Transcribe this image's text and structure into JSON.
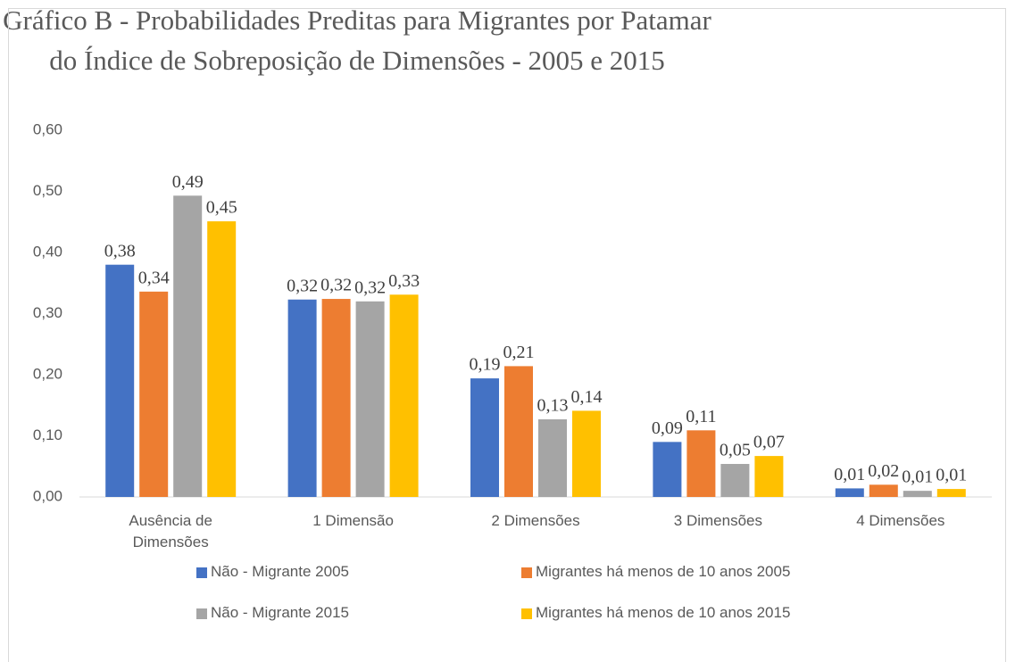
{
  "chart_data": {
    "type": "bar",
    "title": "Gráfico B - Probabilidades Preditas para Migrantes por Patamar do Índice de Sobreposição de Dimensões - 2005 e 2015",
    "categories": [
      "Ausência de Dimensões",
      "1 Dimensão",
      "2 Dimensões",
      "3 Dimensões",
      "4 Dimensões"
    ],
    "series": [
      {
        "name": "Não - Migrante 2005",
        "color": "#4472c4",
        "values": [
          0.38,
          0.323,
          0.194,
          0.09,
          0.014
        ],
        "value_labels": [
          "0,38",
          "0,32",
          "0,19",
          "0,09",
          "0,01"
        ]
      },
      {
        "name": "Migrantes há menos de 10 anos 2005",
        "color": "#ed7d31",
        "values": [
          0.336,
          0.324,
          0.214,
          0.109,
          0.02
        ],
        "value_labels": [
          "0,34",
          "0,32",
          "0,21",
          "0,11",
          "0,02"
        ]
      },
      {
        "name": "Não - Migrante 2015",
        "color": "#a5a5a5",
        "values": [
          0.493,
          0.32,
          0.127,
          0.054,
          0.01
        ],
        "value_labels": [
          "0,49",
          "0,32",
          "0,13",
          "0,05",
          "0,01"
        ]
      },
      {
        "name": "Migrantes há menos de 10 anos 2015",
        "color": "#ffc000",
        "values": [
          0.451,
          0.331,
          0.141,
          0.067,
          0.013
        ],
        "value_labels": [
          "0,45",
          "0,33",
          "0,14",
          "0,07",
          "0,01"
        ]
      }
    ],
    "ylim": [
      0,
      0.6
    ],
    "yticks": [
      {
        "value": 0,
        "label": "0,00"
      },
      {
        "value": 0.1,
        "label": "0,10"
      },
      {
        "value": 0.2,
        "label": "0,20"
      },
      {
        "value": 0.3,
        "label": "0,30"
      },
      {
        "value": 0.4,
        "label": "0,40"
      },
      {
        "value": 0.5,
        "label": "0,50"
      },
      {
        "value": 0.6,
        "label": "0,60"
      }
    ],
    "grid": false,
    "legend": "bottom"
  }
}
